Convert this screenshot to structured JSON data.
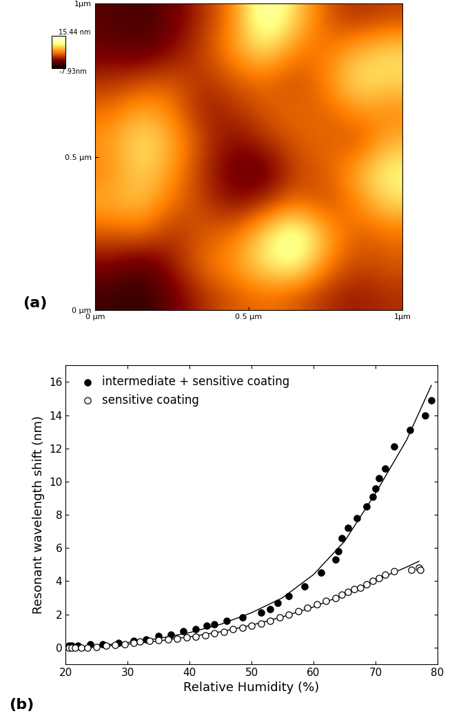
{
  "chart_data": [
    {
      "type": "heatmap",
      "label": "(a)",
      "xlim": [
        0,
        1
      ],
      "ylim": [
        0,
        1
      ],
      "xticks": [
        {
          "value": 0,
          "label": "0 µm"
        },
        {
          "value": 0.5,
          "label": "0.5 µm"
        },
        {
          "value": 1,
          "label": "1µm"
        }
      ],
      "yticks": [
        {
          "value": 0,
          "label": "0 µm"
        },
        {
          "value": 0.5,
          "label": "0.5 µm"
        },
        {
          "value": 1,
          "label": "1µm"
        }
      ],
      "cells": [
        [
          -4,
          -5,
          -3,
          0,
          4,
          13,
          8,
          2,
          0,
          1
        ],
        [
          -3,
          -4,
          -2,
          1,
          5,
          9,
          4,
          3,
          6,
          8
        ],
        [
          0,
          1,
          2,
          0,
          2,
          3,
          1,
          4,
          9,
          8
        ],
        [
          3,
          6,
          4,
          -1,
          0,
          2,
          3,
          2,
          5,
          4
        ],
        [
          5,
          9,
          6,
          1,
          -2,
          0,
          2,
          3,
          1,
          6
        ],
        [
          4,
          8,
          5,
          0,
          -3,
          -4,
          1,
          2,
          6,
          10
        ],
        [
          6,
          7,
          3,
          1,
          -2,
          0,
          3,
          1,
          4,
          8
        ],
        [
          2,
          3,
          0,
          2,
          3,
          8,
          13,
          6,
          2,
          3
        ],
        [
          -2,
          -4,
          -1,
          3,
          5,
          9,
          11,
          4,
          1,
          2
        ],
        [
          -5,
          -6,
          -3,
          0,
          2,
          3,
          2,
          0,
          -1,
          0
        ]
      ],
      "colorbar_range": [
        -7.93,
        15.44
      ],
      "colorbar_ticks": [
        {
          "value": -7.93,
          "label": "-7.93nm"
        },
        {
          "value": 15.44,
          "label": "15.44 nm"
        }
      ]
    },
    {
      "type": "scatter",
      "label": "(b)",
      "x_label": "Relative Humidity (%)",
      "y_label": "Resonant wavelength shift (nm)",
      "xlim": [
        20,
        80
      ],
      "ylim": [
        -1,
        17
      ],
      "xticks": [
        20,
        30,
        40,
        50,
        60,
        70,
        80
      ],
      "yticks": [
        0,
        2,
        4,
        6,
        8,
        10,
        12,
        14,
        16
      ],
      "legend": "upper left",
      "series": [
        {
          "name": "intermediate + sensitive coating",
          "type": "scatter",
          "marker": "filled",
          "color": "#000000",
          "x": [
            20.5,
            21,
            22,
            24,
            26,
            28.5,
            31,
            33,
            35,
            37,
            39,
            41,
            42.8,
            44,
            46,
            48.5,
            51.5,
            53,
            54.2,
            56,
            58.5,
            61.2,
            63.5,
            64,
            64.5,
            65.5,
            67,
            68.5,
            69.5,
            70,
            70.5,
            71.5,
            73,
            75.5,
            78,
            79
          ],
          "values": [
            0.1,
            0.1,
            0.1,
            0.2,
            0.2,
            0.3,
            0.4,
            0.5,
            0.7,
            0.8,
            1.0,
            1.1,
            1.3,
            1.4,
            1.6,
            1.8,
            2.1,
            2.3,
            2.7,
            3.1,
            3.7,
            4.5,
            5.3,
            5.8,
            6.6,
            7.2,
            7.8,
            8.5,
            9.1,
            9.6,
            10.2,
            10.8,
            12.1,
            13.1,
            14.0,
            14.9
          ]
        },
        {
          "name": "sensitive coating",
          "type": "scatter",
          "marker": "open",
          "color": "#000000",
          "x": [
            20.5,
            21,
            21.5,
            22.5,
            23.5,
            25,
            26.5,
            28,
            29.5,
            31,
            32,
            33.5,
            35,
            36.5,
            38,
            39.5,
            41,
            42.5,
            44,
            45.5,
            47,
            48.5,
            50,
            51.5,
            53,
            54.5,
            56,
            57.5,
            59,
            60.5,
            62,
            63.5,
            64.5,
            65.5,
            66.5,
            67.5,
            68.5,
            69.5,
            70.5,
            71.5,
            73,
            75.8,
            77,
            77.2
          ],
          "values": [
            0,
            0,
            0,
            0,
            0,
            0.05,
            0.1,
            0.15,
            0.2,
            0.3,
            0.35,
            0.4,
            0.45,
            0.5,
            0.55,
            0.6,
            0.65,
            0.75,
            0.85,
            0.95,
            1.1,
            1.2,
            1.3,
            1.45,
            1.6,
            1.8,
            2.0,
            2.2,
            2.4,
            2.6,
            2.8,
            3.0,
            3.2,
            3.35,
            3.5,
            3.6,
            3.8,
            4.0,
            4.2,
            4.4,
            4.6,
            4.7,
            4.8,
            4.7
          ]
        },
        {
          "type": "line",
          "line_style": "solid",
          "color": "#000000",
          "x": [
            20,
            25,
            30,
            35,
            40,
            45,
            50,
            55,
            60,
            65,
            70,
            75,
            79
          ],
          "values": [
            0,
            0.1,
            0.3,
            0.55,
            0.9,
            1.4,
            2.1,
            3.0,
            4.4,
            6.4,
            9.3,
            12.5,
            15.8
          ]
        },
        {
          "type": "line",
          "line_style": "solid",
          "color": "#000000",
          "x": [
            20,
            25,
            30,
            35,
            40,
            45,
            50,
            55,
            60,
            65,
            70,
            75,
            77
          ],
          "values": [
            -0.05,
            0.05,
            0.2,
            0.4,
            0.65,
            0.95,
            1.35,
            1.85,
            2.45,
            3.2,
            4.05,
            4.85,
            5.2
          ]
        }
      ]
    }
  ]
}
